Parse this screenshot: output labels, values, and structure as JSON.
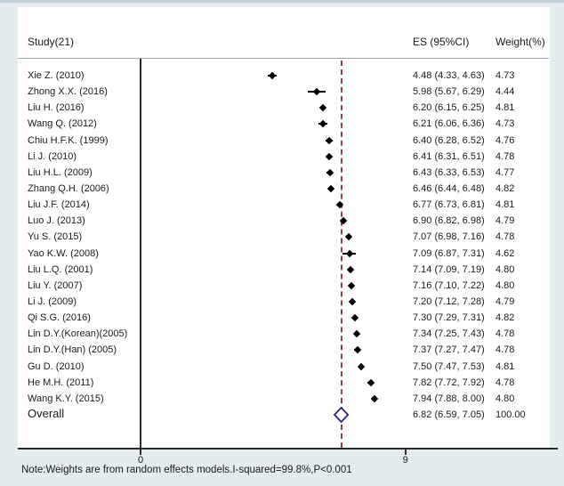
{
  "header": {
    "study_col": "Study(21)",
    "es_col": "ES (95%CI)",
    "weight_col": "Weight(%)"
  },
  "note": "Note:Weights are from random effects models.I-squared=99.8%,P<0.001",
  "chart_data": {
    "type": "forest",
    "title": "",
    "xlabel": "",
    "legend": "none",
    "axis": {
      "ticks": [
        0,
        9
      ],
      "null_line": 0,
      "xlim_px_range": "0 tick aligned with vertical null line"
    },
    "studies": [
      {
        "label": "Xie Z. (2010)",
        "es": 4.48,
        "lo": 4.33,
        "hi": 4.63,
        "es_text": "4.48 (4.33, 4.63)",
        "weight": "4.73"
      },
      {
        "label": "Zhong X.X. (2016)",
        "es": 5.98,
        "lo": 5.67,
        "hi": 6.29,
        "es_text": "5.98 (5.67, 6.29)",
        "weight": "4.44"
      },
      {
        "label": "Liu H. (2016)",
        "es": 6.2,
        "lo": 6.15,
        "hi": 6.25,
        "es_text": "6.20 (6.15, 6.25)",
        "weight": "4.81"
      },
      {
        "label": "Wang Q. (2012)",
        "es": 6.21,
        "lo": 6.06,
        "hi": 6.36,
        "es_text": "6.21 (6.06, 6.36)",
        "weight": "4.73"
      },
      {
        "label": "Chiu H.F.K. (1999)",
        "es": 6.4,
        "lo": 6.28,
        "hi": 6.52,
        "es_text": "6.40 (6.28, 6.52)",
        "weight": "4.76"
      },
      {
        "label": "Li J. (2010)",
        "es": 6.41,
        "lo": 6.31,
        "hi": 6.51,
        "es_text": "6.41 (6.31, 6.51)",
        "weight": "4.78"
      },
      {
        "label": "Liu H.L. (2009)",
        "es": 6.43,
        "lo": 6.33,
        "hi": 6.53,
        "es_text": "6.43 (6.33, 6.53)",
        "weight": "4.77"
      },
      {
        "label": "Zhang Q.H. (2006)",
        "es": 6.46,
        "lo": 6.44,
        "hi": 6.48,
        "es_text": "6.46 (6.44, 6.48)",
        "weight": "4.82"
      },
      {
        "label": "Liu J.F. (2014)",
        "es": 6.77,
        "lo": 6.73,
        "hi": 6.81,
        "es_text": "6.77 (6.73, 6.81)",
        "weight": "4.81"
      },
      {
        "label": "Luo J. (2013)",
        "es": 6.9,
        "lo": 6.82,
        "hi": 6.98,
        "es_text": "6.90 (6.82, 6.98)",
        "weight": "4.79"
      },
      {
        "label": "Yu S. (2015)",
        "es": 7.07,
        "lo": 6.98,
        "hi": 7.16,
        "es_text": "7.07 (6.98, 7.16)",
        "weight": "4.78"
      },
      {
        "label": "Yao K.W. (2008)",
        "es": 7.09,
        "lo": 6.87,
        "hi": 7.31,
        "es_text": "7.09 (6.87, 7.31)",
        "weight": "4.62"
      },
      {
        "label": "Liu L.Q. (2001)",
        "es": 7.14,
        "lo": 7.09,
        "hi": 7.19,
        "es_text": "7.14 (7.09, 7.19)",
        "weight": "4.80"
      },
      {
        "label": "Liu Y. (2007)",
        "es": 7.16,
        "lo": 7.1,
        "hi": 7.22,
        "es_text": "7.16 (7.10, 7.22)",
        "weight": "4.80"
      },
      {
        "label": "Li J. (2009)",
        "es": 7.2,
        "lo": 7.12,
        "hi": 7.28,
        "es_text": "7.20 (7.12, 7.28)",
        "weight": "4.79"
      },
      {
        "label": "Qi S.G. (2016)",
        "es": 7.3,
        "lo": 7.29,
        "hi": 7.31,
        "es_text": "7.30 (7.29, 7.31)",
        "weight": "4.82"
      },
      {
        "label": "Lin D.Y.(Korean)(2005)",
        "es": 7.34,
        "lo": 7.25,
        "hi": 7.43,
        "es_text": "7.34 (7.25, 7.43)",
        "weight": "4.78"
      },
      {
        "label": "Lin D.Y.(Han) (2005)",
        "es": 7.37,
        "lo": 7.27,
        "hi": 7.47,
        "es_text": "7.37 (7.27, 7.47)",
        "weight": "4.78"
      },
      {
        "label": "Gu D. (2010)",
        "es": 7.5,
        "lo": 7.47,
        "hi": 7.53,
        "es_text": "7.50 (7.47, 7.53)",
        "weight": "4.81"
      },
      {
        "label": "He M.H. (2011)",
        "es": 7.82,
        "lo": 7.72,
        "hi": 7.92,
        "es_text": "7.82 (7.72, 7.92)",
        "weight": "4.78"
      },
      {
        "label": "Wang K.Y. (2015)",
        "es": 7.94,
        "lo": 7.88,
        "hi": 8.0,
        "es_text": "7.94 (7.88, 8.00)",
        "weight": "4.80"
      }
    ],
    "overall": {
      "label": "Overall",
      "es": 6.82,
      "lo": 6.59,
      "hi": 7.05,
      "es_text": "6.82 (6.59, 7.05)",
      "weight": "100.00"
    },
    "colors": {
      "background": "#e3ecef",
      "plot_background": "#ffffff",
      "marker": "#000000",
      "ci_line": "#000000",
      "overall_diamond_stroke": "#27277d",
      "overall_diamond_fill": "#ffffff",
      "dashed_overall_line": "#8b4341",
      "axis_line": "#2b2b2b",
      "text": "#1a1a1a"
    }
  }
}
